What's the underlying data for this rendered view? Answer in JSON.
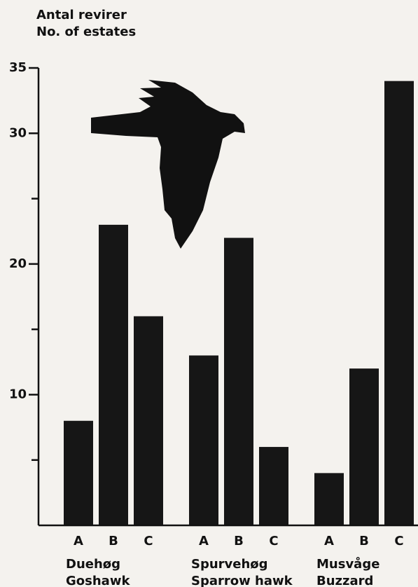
{
  "chart_data": {
    "type": "grouped-bar",
    "y_label": [
      "Antal revirer",
      "No. of estates"
    ],
    "groups": [
      {
        "name_da": "Duehøg",
        "name_en": "Goshawk",
        "categories": [
          "A",
          "B",
          "C"
        ],
        "values": [
          8,
          23,
          16
        ]
      },
      {
        "name_da": "Spurvehøg",
        "name_en": "Sparrow hawk",
        "categories": [
          "A",
          "B",
          "C"
        ],
        "values": [
          13,
          22,
          6
        ]
      },
      {
        "name_da": "Musvåge",
        "name_en": "Buzzard",
        "categories": [
          "A",
          "B",
          "C"
        ],
        "values": [
          4,
          12,
          34
        ]
      }
    ],
    "color": "#161616",
    "ylim": [
      0,
      35
    ],
    "yticks": [
      10,
      20,
      30,
      35
    ],
    "minor_yticks": [
      5,
      15,
      25
    ]
  }
}
